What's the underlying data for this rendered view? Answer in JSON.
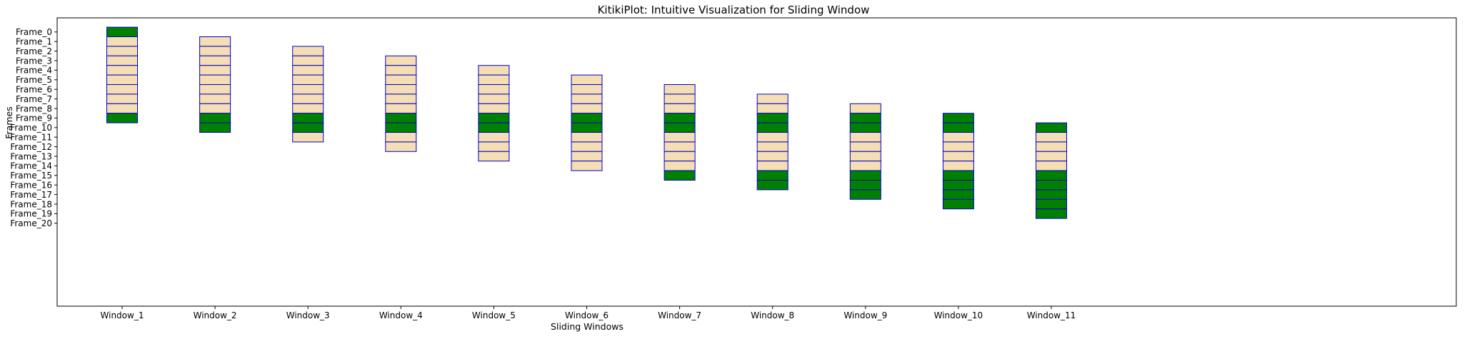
{
  "chart_data": {
    "type": "heatmap",
    "title": "KitikiPlot: Intuitive Visualization for Sliding Window",
    "xlabel": "Sliding Windows",
    "ylabel": "Frames",
    "categories": [
      "Window_1",
      "Window_2",
      "Window_3",
      "Window_4",
      "Window_5",
      "Window_6",
      "Window_7",
      "Window_8",
      "Window_9",
      "Window_10",
      "Window_11"
    ],
    "y_categories": [
      "Frame_0",
      "Frame_1",
      "Frame_2",
      "Frame_3",
      "Frame_4",
      "Frame_5",
      "Frame_6",
      "Frame_7",
      "Frame_8",
      "Frame_9",
      "Frame_10",
      "Frame_11",
      "Frame_12",
      "Frame_13",
      "Frame_14",
      "Frame_15",
      "Frame_16",
      "Frame_17",
      "Frame_18",
      "Frame_19",
      "Frame_20"
    ],
    "window_size": 10,
    "step": 1,
    "colors": {
      "1": "#008000",
      "0": "#F5DEB3",
      "edge": "#0000CD"
    },
    "grid": false,
    "windows": [
      {
        "start": 0,
        "values": [
          1,
          0,
          0,
          0,
          0,
          0,
          0,
          0,
          0,
          1
        ]
      },
      {
        "start": 1,
        "values": [
          0,
          0,
          0,
          0,
          0,
          0,
          0,
          0,
          1,
          1
        ]
      },
      {
        "start": 2,
        "values": [
          0,
          0,
          0,
          0,
          0,
          0,
          0,
          1,
          1,
          0
        ]
      },
      {
        "start": 3,
        "values": [
          0,
          0,
          0,
          0,
          0,
          0,
          1,
          1,
          0,
          0
        ]
      },
      {
        "start": 4,
        "values": [
          0,
          0,
          0,
          0,
          0,
          1,
          1,
          0,
          0,
          0
        ]
      },
      {
        "start": 5,
        "values": [
          0,
          0,
          0,
          0,
          1,
          1,
          0,
          0,
          0,
          0
        ]
      },
      {
        "start": 6,
        "values": [
          0,
          0,
          0,
          1,
          1,
          0,
          0,
          0,
          0,
          1
        ]
      },
      {
        "start": 7,
        "values": [
          0,
          0,
          1,
          1,
          0,
          0,
          0,
          0,
          1,
          1
        ]
      },
      {
        "start": 8,
        "values": [
          0,
          1,
          1,
          0,
          0,
          0,
          0,
          1,
          1,
          1
        ]
      },
      {
        "start": 9,
        "values": [
          1,
          1,
          0,
          0,
          0,
          0,
          1,
          1,
          1,
          1
        ]
      },
      {
        "start": 10,
        "values": [
          1,
          0,
          0,
          0,
          0,
          1,
          1,
          1,
          1,
          1
        ]
      }
    ]
  }
}
